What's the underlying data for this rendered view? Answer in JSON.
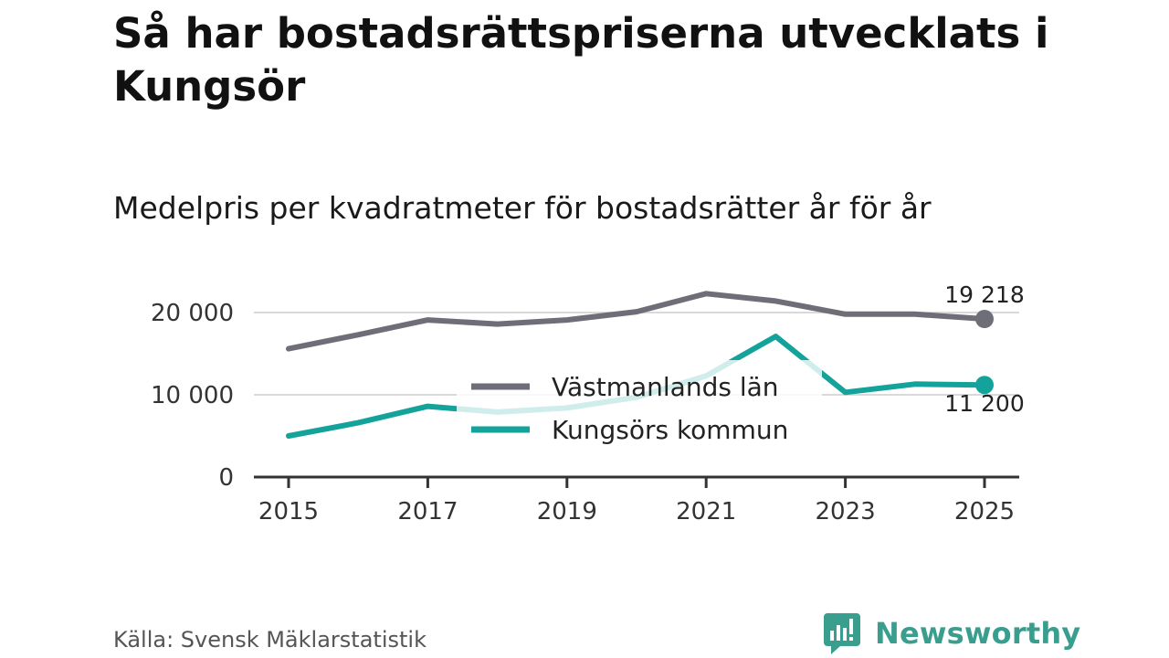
{
  "title": "Så har bostadsrättspriserna utvecklats i Kungsör",
  "subtitle": "Medelpris per kvadratmeter för bostadsrätter år för år",
  "source": "Källa: Svensk Mäklarstatistik",
  "brand": {
    "name": "Newsworthy",
    "logo_icon": "newsworthy-logo-icon",
    "color": "#3a9e8f"
  },
  "colors": {
    "grid": "#d9d9d9",
    "axis": "#333333"
  },
  "chart_data": {
    "type": "line",
    "title": "Medelpris per kvadratmeter för bostadsrätter år för år",
    "x": [
      2015,
      2016,
      2017,
      2018,
      2019,
      2020,
      2021,
      2022,
      2023,
      2024,
      2025
    ],
    "x_ticks": [
      2015,
      2017,
      2019,
      2021,
      2023,
      2025
    ],
    "x_tick_labels": [
      "2015",
      "2017",
      "2019",
      "2021",
      "2023",
      "2025"
    ],
    "y_ticks": [
      0,
      10000,
      20000
    ],
    "y_tick_labels": [
      "0",
      "10 000",
      "20 000"
    ],
    "ylim": [
      0,
      20000
    ],
    "xlim": [
      2015,
      2025
    ],
    "grid": true,
    "legend_position": "center",
    "series": [
      {
        "name": "Västmanlands län",
        "color": "#6e6e78",
        "values": [
          15600,
          17300,
          19100,
          18600,
          19100,
          20100,
          22300,
          21400,
          19800,
          19800,
          19218
        ],
        "end_label": "19 218"
      },
      {
        "name": "Kungsörs kommun",
        "color": "#13a39a",
        "values": [
          5000,
          6600,
          8600,
          7900,
          8400,
          9700,
          12300,
          17100,
          10300,
          11300,
          11200
        ],
        "end_label": "11 200"
      }
    ]
  }
}
